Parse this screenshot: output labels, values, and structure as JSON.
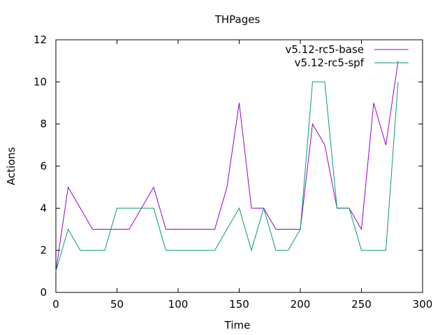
{
  "chart_data": {
    "type": "line",
    "title": "THPages",
    "xlabel": "Time",
    "ylabel": "Actions",
    "xlim": [
      0,
      300
    ],
    "ylim": [
      0,
      12
    ],
    "x_ticks": [
      0,
      50,
      100,
      150,
      200,
      250,
      300
    ],
    "y_ticks": [
      0,
      2,
      4,
      6,
      8,
      10,
      12
    ],
    "grid": false,
    "legend_position": "top-right",
    "series": [
      {
        "name": "v5.12-rc5-base",
        "color": "#9400d3",
        "points": [
          [
            0,
            1
          ],
          [
            10,
            5
          ],
          [
            20,
            4
          ],
          [
            30,
            3
          ],
          [
            40,
            3
          ],
          [
            50,
            3
          ],
          [
            60,
            3
          ],
          [
            70,
            4
          ],
          [
            80,
            5
          ],
          [
            90,
            3
          ],
          [
            100,
            3
          ],
          [
            110,
            3
          ],
          [
            120,
            3
          ],
          [
            130,
            3
          ],
          [
            140,
            5
          ],
          [
            150,
            9
          ],
          [
            160,
            4
          ],
          [
            170,
            4
          ],
          [
            180,
            3
          ],
          [
            190,
            3
          ],
          [
            200,
            3
          ],
          [
            210,
            8
          ],
          [
            220,
            7
          ],
          [
            230,
            4
          ],
          [
            240,
            4
          ],
          [
            250,
            3
          ],
          [
            260,
            9
          ],
          [
            270,
            7
          ],
          [
            280,
            11
          ]
        ]
      },
      {
        "name": "v5.12-rc5-spf",
        "color": "#009e73",
        "points": [
          [
            0,
            1
          ],
          [
            10,
            3
          ],
          [
            20,
            2
          ],
          [
            30,
            2
          ],
          [
            40,
            2
          ],
          [
            50,
            4
          ],
          [
            60,
            4
          ],
          [
            70,
            4
          ],
          [
            80,
            4
          ],
          [
            90,
            2
          ],
          [
            100,
            2
          ],
          [
            110,
            2
          ],
          [
            120,
            2
          ],
          [
            130,
            2
          ],
          [
            140,
            3
          ],
          [
            150,
            4
          ],
          [
            160,
            2
          ],
          [
            170,
            4
          ],
          [
            180,
            2
          ],
          [
            190,
            2
          ],
          [
            200,
            3
          ],
          [
            210,
            10
          ],
          [
            220,
            10
          ],
          [
            230,
            4
          ],
          [
            240,
            4
          ],
          [
            250,
            2
          ],
          [
            260,
            2
          ],
          [
            270,
            2
          ],
          [
            280,
            10
          ]
        ]
      }
    ]
  }
}
